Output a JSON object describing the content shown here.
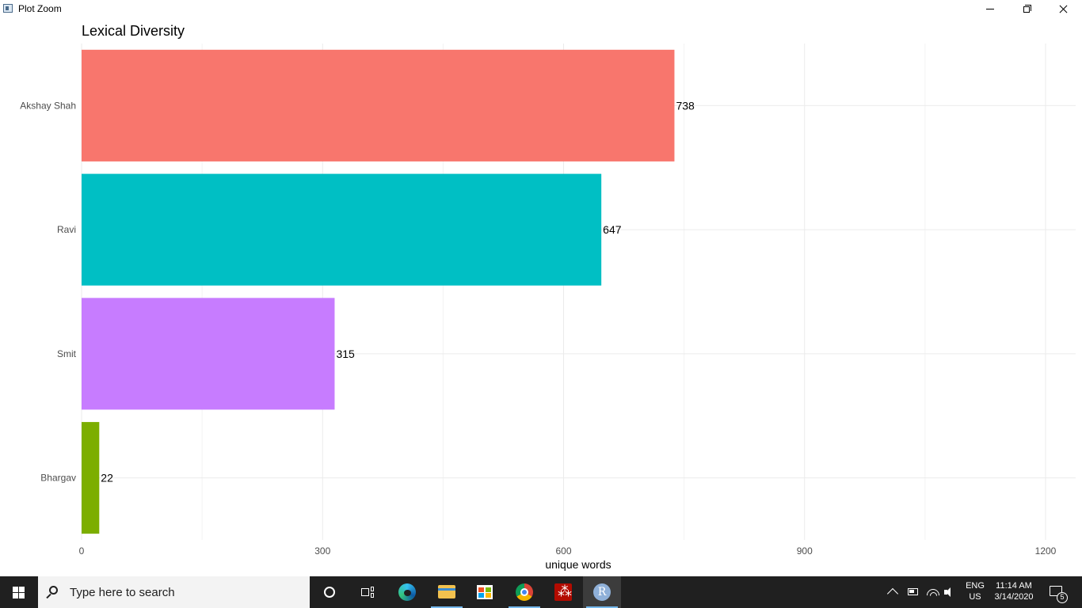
{
  "window": {
    "title": "Plot Zoom",
    "icon": "plot-window-icon",
    "controls": {
      "minimize": "minimize-icon",
      "restore": "restore-icon",
      "close": "close-icon"
    }
  },
  "chart_data": {
    "type": "bar",
    "orientation": "horizontal",
    "title": "Lexical Diversity",
    "xlabel": "unique words",
    "ylabel": "",
    "categories": [
      "Akshay Shah",
      "Ravi",
      "Smit",
      "Bhargav"
    ],
    "values": [
      738,
      647,
      315,
      22
    ],
    "data_labels": [
      "738",
      "647",
      "315",
      "22"
    ],
    "colors": [
      "#F8766D",
      "#00BFC4",
      "#C77CFF",
      "#7CAE00"
    ],
    "xlim": [
      0,
      1230
    ],
    "xticks": [
      0,
      300,
      600,
      900,
      1200
    ],
    "xtick_labels": [
      "0",
      "300",
      "600",
      "900",
      "1200"
    ],
    "grid": true,
    "legend": "none"
  },
  "taskbar": {
    "search_placeholder": "Type here to search",
    "language": {
      "line1": "ENG",
      "line2": "US"
    },
    "clock": {
      "time": "11:14 AM",
      "date": "3/14/2020"
    },
    "notification_count": "5",
    "pinned": [
      "cortana-icon",
      "task-view-icon",
      "edge-icon",
      "file-explorer-icon",
      "store-icon",
      "chrome-icon",
      "acrobat-icon",
      "r-icon"
    ]
  }
}
